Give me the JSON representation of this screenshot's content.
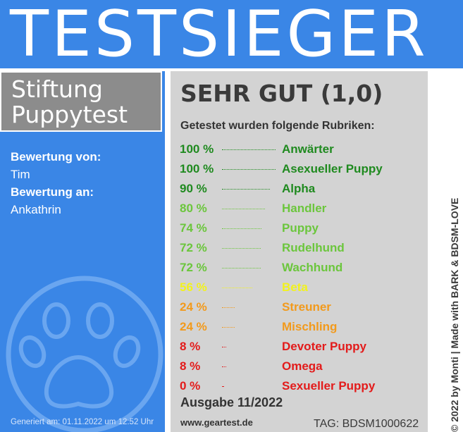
{
  "banner": {
    "title": "TESTSIEGER"
  },
  "org": {
    "line1": "Stiftung",
    "line2": "Puppytest"
  },
  "meta": {
    "by_label": "Bewertung von:",
    "by_value": "Tim",
    "to_label": "Bewertung an:",
    "to_value": "Ankathrin"
  },
  "generated": "Generiert am: 01.11.2022 um 12:52 Uhr",
  "main": {
    "verdict": "SEHR GUT (1,0)",
    "intro": "Getestet wurden folgende Rubriken:",
    "issue": "Ausgabe 11/2022",
    "website": "www.geartest.de",
    "tag": "TAG: BDSM1000622"
  },
  "colors": {
    "banner": "#3a86e6",
    "panel": "#d3d3d3",
    "org_box": "#8c8c8c",
    "dark_green": "#1f8a1f",
    "light_green": "#6bc63c",
    "yellow": "#f2f21c",
    "orange": "#f29a1c",
    "red": "#e31b1b"
  },
  "ratings": [
    {
      "percent_label": "100 %",
      "category": "Anwärter",
      "value": 100,
      "color": "#1f8a1f"
    },
    {
      "percent_label": "100 %",
      "category": "Asexueller Puppy",
      "value": 100,
      "color": "#1f8a1f"
    },
    {
      "percent_label": "90 %",
      "category": "Alpha",
      "value": 90,
      "color": "#1f8a1f"
    },
    {
      "percent_label": "80 %",
      "category": "Handler",
      "value": 80,
      "color": "#6bc63c"
    },
    {
      "percent_label": "74 %",
      "category": "Puppy",
      "value": 74,
      "color": "#6bc63c"
    },
    {
      "percent_label": "72 %",
      "category": "Rudelhund",
      "value": 72,
      "color": "#6bc63c"
    },
    {
      "percent_label": "72 %",
      "category": "Wachhund",
      "value": 72,
      "color": "#6bc63c"
    },
    {
      "percent_label": "56 %",
      "category": "Beta",
      "value": 56,
      "color": "#f2f21c"
    },
    {
      "percent_label": "24 %",
      "category": "Streuner",
      "value": 24,
      "color": "#f29a1c"
    },
    {
      "percent_label": "24 %",
      "category": "Mischling",
      "value": 24,
      "color": "#f29a1c"
    },
    {
      "percent_label": "8 %",
      "category": "Devoter Puppy",
      "value": 8,
      "color": "#e31b1b"
    },
    {
      "percent_label": "8 %",
      "category": "Omega",
      "value": 8,
      "color": "#e31b1b"
    },
    {
      "percent_label": "0 %",
      "category": "Sexueller Puppy",
      "value": 0,
      "color": "#e31b1b"
    }
  ],
  "side_text": "© 2022 by Monti | Made with BARK & BDSM-LOVE",
  "icons": {
    "paw": "paw-print-icon"
  }
}
